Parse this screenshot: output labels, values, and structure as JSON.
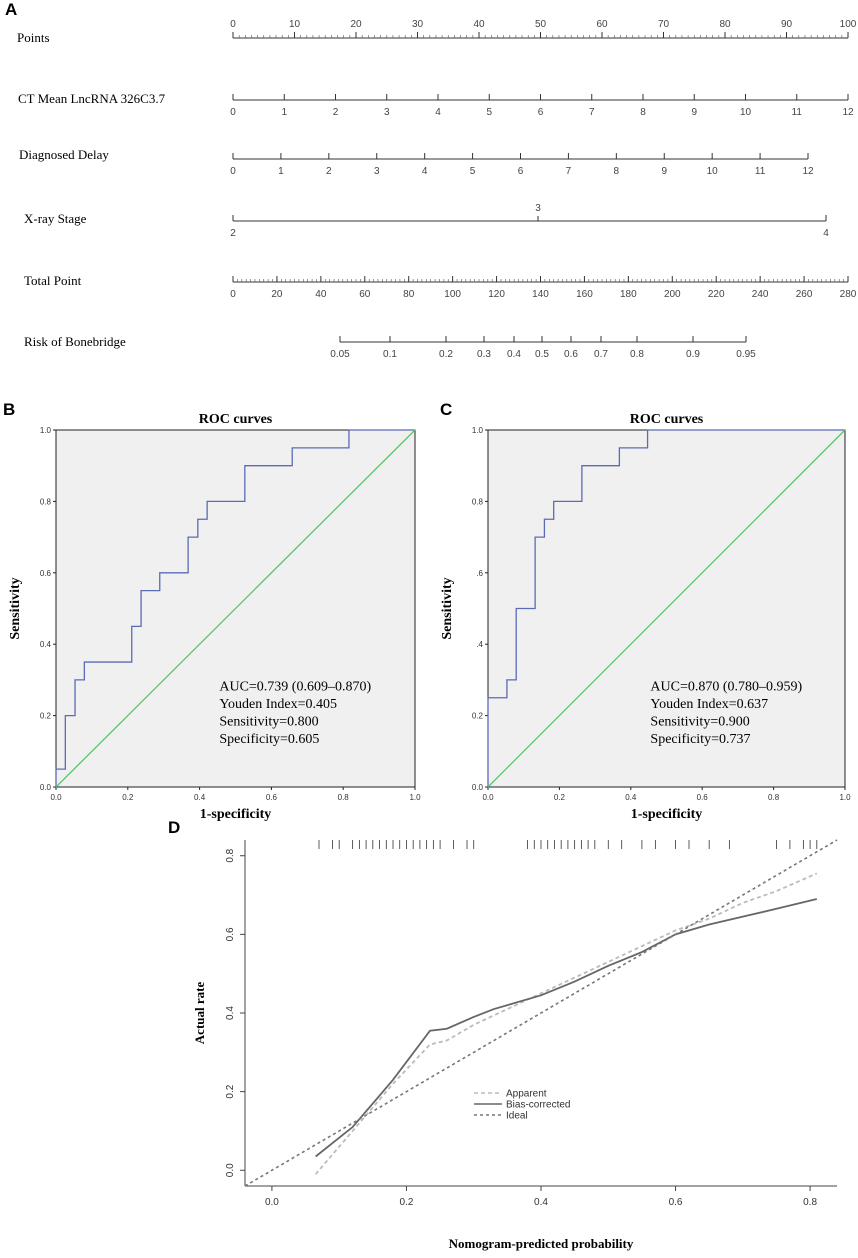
{
  "panels": {
    "a": "A",
    "b": "B",
    "c": "C",
    "d": "D"
  },
  "chart_data": [
    {
      "type": "nomogram",
      "panel": "A",
      "rows": [
        {
          "label": "Points",
          "min": 0,
          "max": 100,
          "ticks": [
            0,
            10,
            20,
            30,
            40,
            50,
            60,
            70,
            80,
            90,
            100
          ],
          "minor_step": 1
        },
        {
          "label": "CT Mean LncRNA 326C3.7",
          "ticks": [
            "0",
            "1",
            "2",
            "3",
            "4",
            "5",
            "6",
            "7",
            "8",
            "9",
            "10",
            "11",
            "12"
          ]
        },
        {
          "label": "Diagnosed Delay",
          "ticks": [
            "0",
            "1",
            "2",
            "3",
            "4",
            "5",
            "6",
            "7",
            "8",
            "9",
            "10",
            "11",
            "12"
          ]
        },
        {
          "label": "X-ray Stage",
          "ticks": [
            "2",
            "3",
            "4"
          ]
        },
        {
          "label": "Total Point",
          "min": 0,
          "max": 280,
          "ticks": [
            0,
            20,
            40,
            60,
            80,
            100,
            120,
            140,
            160,
            180,
            200,
            220,
            240,
            260,
            280
          ],
          "minor_step": 2
        },
        {
          "label": "Risk of Bonebridge",
          "ticks": [
            "0.05",
            "0.1",
            "0.2",
            "0.3",
            "0.4",
            "0.5",
            "0.6",
            "0.7",
            "0.8",
            "0.9",
            "0.95"
          ]
        }
      ]
    },
    {
      "type": "line",
      "panel": "B",
      "title": "ROC curves",
      "xlabel": "1-specificity",
      "ylabel": "Sensitivity",
      "xlim": [
        0,
        1
      ],
      "ylim": [
        0,
        1
      ],
      "xticks": [
        "0.0",
        "0.2",
        "0.4",
        "0.6",
        "0.8",
        "1.0"
      ],
      "yticks": [
        "0.0",
        "0.2",
        "0.4",
        "0.6",
        "0.8",
        "1.0"
      ],
      "series": [
        {
          "name": "ROC",
          "color": "#5b6bb5",
          "points": [
            [
              0,
              0
            ],
            [
              0,
              0.05
            ],
            [
              0.026,
              0.05
            ],
            [
              0.026,
              0.2
            ],
            [
              0.053,
              0.2
            ],
            [
              0.053,
              0.3
            ],
            [
              0.079,
              0.3
            ],
            [
              0.079,
              0.35
            ],
            [
              0.211,
              0.35
            ],
            [
              0.211,
              0.45
            ],
            [
              0.237,
              0.45
            ],
            [
              0.237,
              0.55
            ],
            [
              0.289,
              0.55
            ],
            [
              0.289,
              0.6
            ],
            [
              0.368,
              0.6
            ],
            [
              0.368,
              0.7
            ],
            [
              0.395,
              0.7
            ],
            [
              0.395,
              0.75
            ],
            [
              0.421,
              0.75
            ],
            [
              0.421,
              0.8
            ],
            [
              0.526,
              0.8
            ],
            [
              0.526,
              0.9
            ],
            [
              0.658,
              0.9
            ],
            [
              0.658,
              0.95
            ],
            [
              0.816,
              0.95
            ],
            [
              0.816,
              1.0
            ],
            [
              1.0,
              1.0
            ]
          ]
        },
        {
          "name": "Reference",
          "color": "#5cc46a",
          "points": [
            [
              0,
              0
            ],
            [
              1,
              1
            ]
          ]
        }
      ],
      "annotations": [
        "AUC=0.739 (0.609–0.870)",
        "Youden Index=0.405",
        "Sensitivity=0.800",
        "Specificity=0.605"
      ]
    },
    {
      "type": "line",
      "panel": "C",
      "title": "ROC curves",
      "xlabel": "1-specificity",
      "ylabel": "Sensitivity",
      "xlim": [
        0,
        1
      ],
      "ylim": [
        0,
        1
      ],
      "xticks": [
        "0.0",
        "0.2",
        "0.4",
        "0.6",
        "0.8",
        "1.0"
      ],
      "yticks": [
        "0.0",
        "0.2",
        ".4",
        ".6",
        "0.8",
        "1.0"
      ],
      "series": [
        {
          "name": "ROC",
          "color": "#5b6bb5",
          "points": [
            [
              0,
              0
            ],
            [
              0,
              0.25
            ],
            [
              0.053,
              0.25
            ],
            [
              0.053,
              0.3
            ],
            [
              0.079,
              0.3
            ],
            [
              0.079,
              0.5
            ],
            [
              0.132,
              0.5
            ],
            [
              0.132,
              0.7
            ],
            [
              0.158,
              0.7
            ],
            [
              0.158,
              0.75
            ],
            [
              0.184,
              0.75
            ],
            [
              0.184,
              0.8
            ],
            [
              0.263,
              0.8
            ],
            [
              0.263,
              0.9
            ],
            [
              0.368,
              0.9
            ],
            [
              0.368,
              0.95
            ],
            [
              0.447,
              0.95
            ],
            [
              0.447,
              1.0
            ],
            [
              1.0,
              1.0
            ]
          ]
        },
        {
          "name": "Reference",
          "color": "#5cc46a",
          "points": [
            [
              0,
              0
            ],
            [
              1,
              1
            ]
          ]
        }
      ],
      "annotations": [
        "AUC=0.870 (0.780–0.959)",
        "Youden Index=0.637",
        "Sensitivity=0.900",
        "Specificity=0.737"
      ]
    },
    {
      "type": "line",
      "panel": "D",
      "xlabel": "Nomogram-predicted probability",
      "ylabel": "Actual rate",
      "xlim": [
        -0.04,
        0.84
      ],
      "ylim": [
        -0.04,
        0.84
      ],
      "xticks": [
        0.0,
        0.2,
        0.4,
        0.6,
        0.8
      ],
      "yticks": [
        0.0,
        0.2,
        0.4,
        0.6,
        0.8
      ],
      "series": [
        {
          "name": "Apparent",
          "color": "#bbbbbb",
          "dash": "4,3",
          "points": [
            [
              0.065,
              -0.01
            ],
            [
              0.12,
              0.1
            ],
            [
              0.18,
              0.22
            ],
            [
              0.235,
              0.32
            ],
            [
              0.26,
              0.33
            ],
            [
              0.3,
              0.37
            ],
            [
              0.35,
              0.41
            ],
            [
              0.4,
              0.45
            ],
            [
              0.45,
              0.49
            ],
            [
              0.5,
              0.53
            ],
            [
              0.55,
              0.57
            ],
            [
              0.6,
              0.61
            ],
            [
              0.65,
              0.64
            ],
            [
              0.7,
              0.68
            ],
            [
              0.75,
              0.71
            ],
            [
              0.81,
              0.755
            ]
          ]
        },
        {
          "name": "Bias-corrected",
          "color": "#666666",
          "dash": "",
          "points": [
            [
              0.065,
              0.035
            ],
            [
              0.12,
              0.11
            ],
            [
              0.18,
              0.23
            ],
            [
              0.235,
              0.355
            ],
            [
              0.26,
              0.36
            ],
            [
              0.3,
              0.39
            ],
            [
              0.33,
              0.41
            ],
            [
              0.4,
              0.445
            ],
            [
              0.45,
              0.48
            ],
            [
              0.5,
              0.52
            ],
            [
              0.55,
              0.555
            ],
            [
              0.6,
              0.6
            ],
            [
              0.65,
              0.625
            ],
            [
              0.7,
              0.645
            ],
            [
              0.75,
              0.665
            ],
            [
              0.81,
              0.69
            ]
          ]
        },
        {
          "name": "Ideal",
          "color": "#777777",
          "dash": "3,3",
          "points": [
            [
              -0.04,
              -0.04
            ],
            [
              0.84,
              0.84
            ]
          ]
        }
      ],
      "rug": [
        0.07,
        0.09,
        0.1,
        0.12,
        0.13,
        0.14,
        0.15,
        0.16,
        0.17,
        0.18,
        0.19,
        0.2,
        0.21,
        0.22,
        0.23,
        0.24,
        0.25,
        0.27,
        0.29,
        0.3,
        0.38,
        0.39,
        0.4,
        0.41,
        0.42,
        0.43,
        0.44,
        0.45,
        0.46,
        0.47,
        0.48,
        0.5,
        0.52,
        0.55,
        0.57,
        0.6,
        0.62,
        0.65,
        0.68,
        0.75,
        0.77,
        0.79,
        0.8,
        0.81
      ]
    }
  ]
}
